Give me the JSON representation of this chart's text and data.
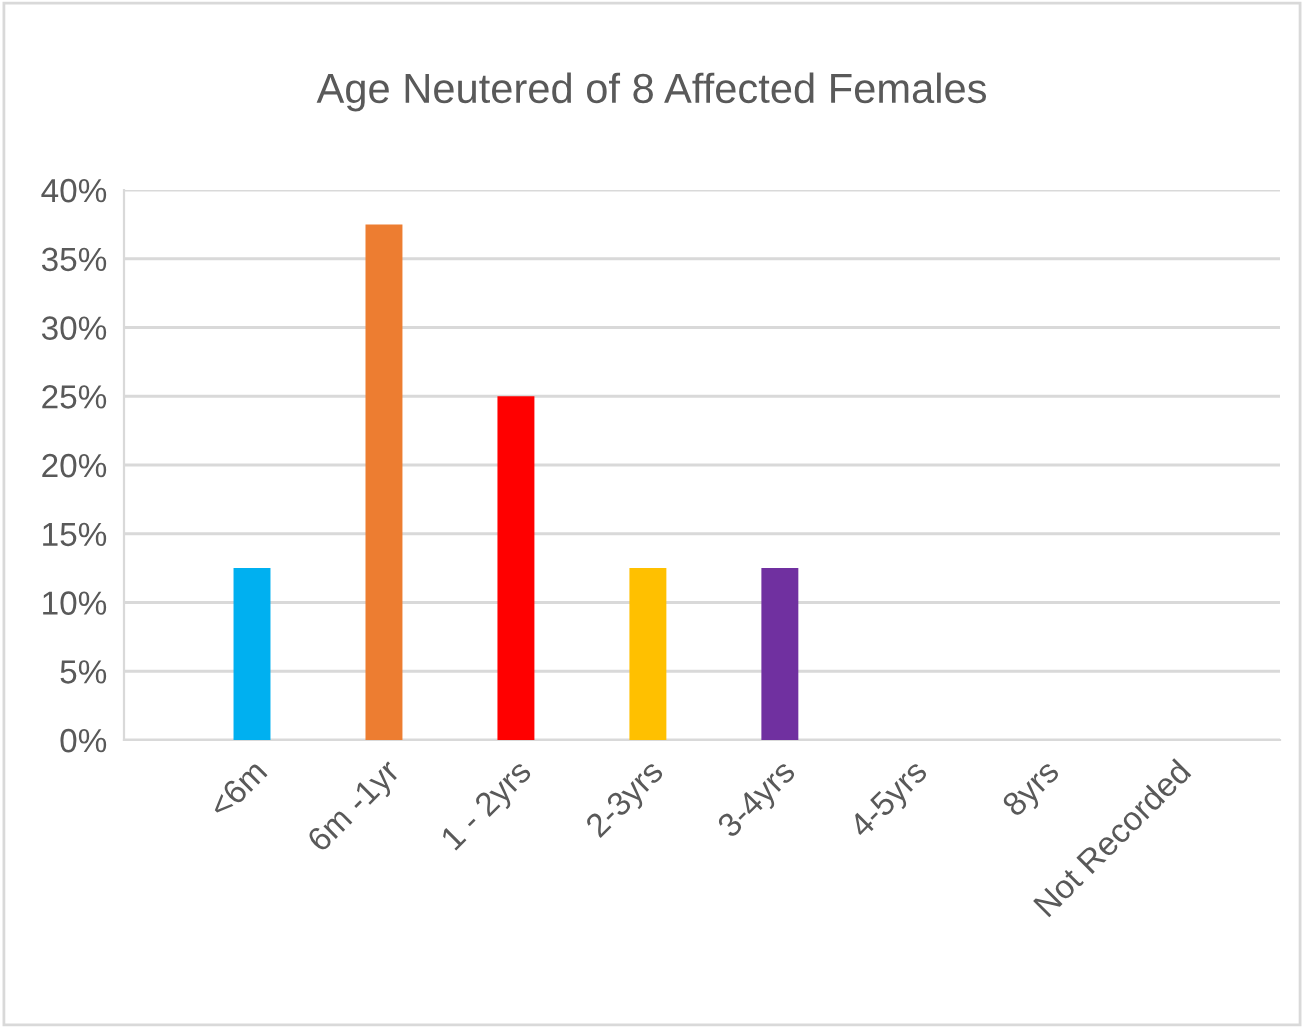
{
  "chart_data": {
    "type": "bar",
    "title": "Age Neutered of 8 Affected Females",
    "categories": [
      "<6m",
      "6m -1yr",
      "1 - 2yrs",
      "2-3yrs",
      "3-4yrs",
      "4-5yrs",
      "8yrs",
      "Not Recorded"
    ],
    "values": [
      12.5,
      37.5,
      25,
      12.5,
      12.5,
      0,
      0,
      0
    ],
    "colors": [
      "#00b0f0",
      "#ed7d31",
      "#ff0000",
      "#ffc000",
      "#7030a0",
      "#70ad47",
      "#4472c4",
      "#a5a5a5"
    ],
    "ylim": [
      0,
      40
    ],
    "yticks": [
      {
        "value": 0,
        "label": "0%"
      },
      {
        "value": 5,
        "label": "5%"
      },
      {
        "value": 10,
        "label": "10%"
      },
      {
        "value": 15,
        "label": "15%"
      },
      {
        "value": 20,
        "label": "20%"
      },
      {
        "value": 25,
        "label": "25%"
      },
      {
        "value": 30,
        "label": "30%"
      },
      {
        "value": 35,
        "label": "35%"
      },
      {
        "value": 40,
        "label": "40%"
      }
    ],
    "grid": "y"
  }
}
